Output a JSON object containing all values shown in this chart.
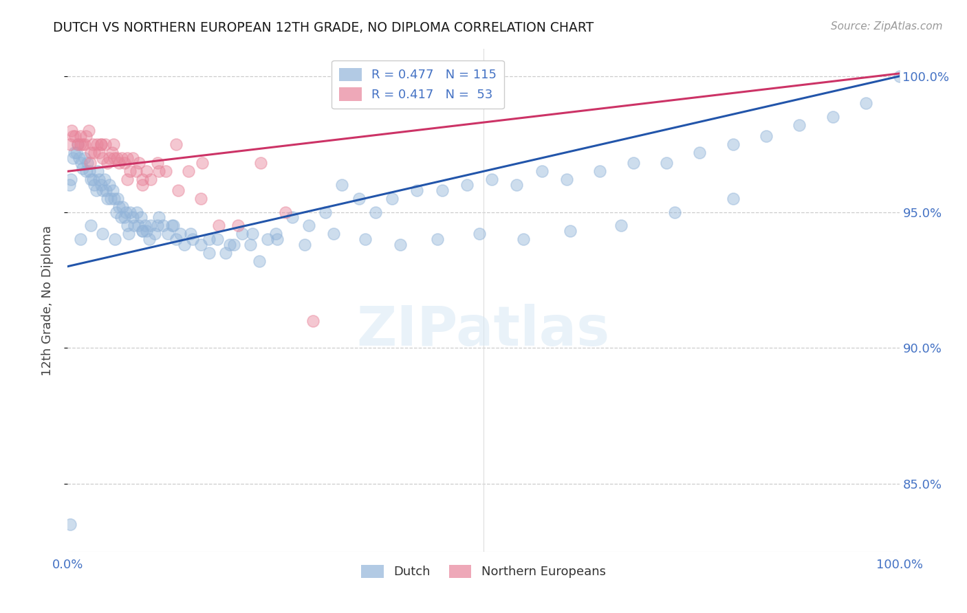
{
  "title": "DUTCH VS NORTHERN EUROPEAN 12TH GRADE, NO DIPLOMA CORRELATION CHART",
  "source": "Source: ZipAtlas.com",
  "ylabel": "12th Grade, No Diploma",
  "ytick_values": [
    1.0,
    0.95,
    0.9,
    0.85
  ],
  "xlim": [
    0.0,
    1.0
  ],
  "ylim": [
    0.825,
    1.01
  ],
  "dutch_color": "#92b4d9",
  "northern_color": "#e8849a",
  "regression_dutch_color": "#2255aa",
  "regression_northern_color": "#cc3366",
  "watermark_text": "ZIPatlas",
  "background_color": "#ffffff",
  "grid_color": "#cccccc",
  "axis_label_color": "#4472c4",
  "dutch_R": 0.477,
  "dutch_N": 115,
  "northern_R": 0.417,
  "northern_N": 53,
  "dutch_intercept": 0.93,
  "dutch_slope": 0.07,
  "northern_intercept": 0.965,
  "northern_slope": 0.036,
  "dutch_x": [
    0.002,
    0.004,
    0.006,
    0.008,
    0.01,
    0.012,
    0.014,
    0.016,
    0.018,
    0.02,
    0.022,
    0.024,
    0.026,
    0.028,
    0.03,
    0.032,
    0.034,
    0.036,
    0.038,
    0.04,
    0.042,
    0.044,
    0.046,
    0.048,
    0.05,
    0.052,
    0.054,
    0.056,
    0.058,
    0.06,
    0.062,
    0.064,
    0.066,
    0.068,
    0.07,
    0.072,
    0.075,
    0.078,
    0.08,
    0.083,
    0.085,
    0.088,
    0.09,
    0.093,
    0.095,
    0.098,
    0.1,
    0.105,
    0.11,
    0.115,
    0.12,
    0.125,
    0.13,
    0.135,
    0.14,
    0.15,
    0.16,
    0.17,
    0.18,
    0.19,
    0.2,
    0.21,
    0.22,
    0.23,
    0.24,
    0.25,
    0.27,
    0.29,
    0.31,
    0.33,
    0.35,
    0.37,
    0.39,
    0.42,
    0.45,
    0.48,
    0.51,
    0.54,
    0.57,
    0.6,
    0.64,
    0.68,
    0.72,
    0.76,
    0.8,
    0.84,
    0.88,
    0.92,
    0.96,
    1.0,
    0.003,
    0.015,
    0.028,
    0.042,
    0.057,
    0.073,
    0.09,
    0.108,
    0.127,
    0.148,
    0.17,
    0.195,
    0.222,
    0.252,
    0.285,
    0.32,
    0.358,
    0.4,
    0.445,
    0.495,
    0.548,
    0.604,
    0.665,
    0.73,
    0.8
  ],
  "dutch_y": [
    0.96,
    0.962,
    0.97,
    0.972,
    0.972,
    0.975,
    0.97,
    0.968,
    0.966,
    0.97,
    0.965,
    0.968,
    0.965,
    0.962,
    0.962,
    0.96,
    0.958,
    0.965,
    0.962,
    0.96,
    0.958,
    0.962,
    0.958,
    0.955,
    0.96,
    0.955,
    0.958,
    0.955,
    0.95,
    0.955,
    0.952,
    0.948,
    0.952,
    0.948,
    0.95,
    0.945,
    0.95,
    0.948,
    0.945,
    0.95,
    0.945,
    0.948,
    0.943,
    0.945,
    0.943,
    0.94,
    0.945,
    0.942,
    0.948,
    0.945,
    0.942,
    0.945,
    0.94,
    0.942,
    0.938,
    0.94,
    0.938,
    0.935,
    0.94,
    0.935,
    0.938,
    0.942,
    0.938,
    0.932,
    0.94,
    0.942,
    0.948,
    0.945,
    0.95,
    0.96,
    0.955,
    0.95,
    0.955,
    0.958,
    0.958,
    0.96,
    0.962,
    0.96,
    0.965,
    0.962,
    0.965,
    0.968,
    0.968,
    0.972,
    0.975,
    0.978,
    0.982,
    0.985,
    0.99,
    1.0,
    0.835,
    0.94,
    0.945,
    0.942,
    0.94,
    0.942,
    0.943,
    0.945,
    0.945,
    0.942,
    0.94,
    0.938,
    0.942,
    0.94,
    0.938,
    0.942,
    0.94,
    0.938,
    0.94,
    0.942,
    0.94,
    0.943,
    0.945,
    0.95,
    0.955
  ],
  "northern_x": [
    0.003,
    0.006,
    0.009,
    0.012,
    0.015,
    0.018,
    0.02,
    0.022,
    0.025,
    0.028,
    0.03,
    0.032,
    0.035,
    0.038,
    0.04,
    0.042,
    0.045,
    0.048,
    0.05,
    0.053,
    0.056,
    0.059,
    0.062,
    0.065,
    0.068,
    0.072,
    0.075,
    0.078,
    0.082,
    0.086,
    0.09,
    0.095,
    0.1,
    0.108,
    0.118,
    0.13,
    0.145,
    0.162,
    0.182,
    0.205,
    0.232,
    0.262,
    0.295,
    0.005,
    0.015,
    0.027,
    0.04,
    0.055,
    0.072,
    0.09,
    0.11,
    0.133,
    0.16
  ],
  "northern_y": [
    0.975,
    0.978,
    0.978,
    0.975,
    0.975,
    0.975,
    0.975,
    0.978,
    0.98,
    0.972,
    0.975,
    0.972,
    0.975,
    0.972,
    0.975,
    0.97,
    0.975,
    0.968,
    0.97,
    0.972,
    0.97,
    0.97,
    0.968,
    0.97,
    0.968,
    0.97,
    0.965,
    0.97,
    0.965,
    0.968,
    0.962,
    0.965,
    0.962,
    0.968,
    0.965,
    0.975,
    0.965,
    0.968,
    0.945,
    0.945,
    0.968,
    0.95,
    0.91,
    0.98,
    0.978,
    0.968,
    0.975,
    0.975,
    0.962,
    0.96,
    0.965,
    0.958,
    0.955
  ]
}
